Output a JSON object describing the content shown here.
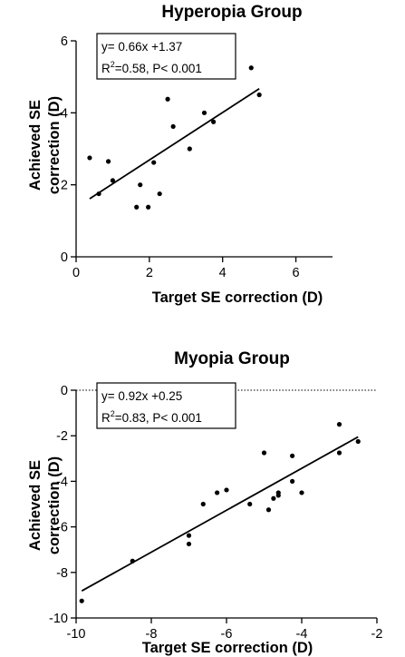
{
  "chart_data": [
    {
      "type": "scatter",
      "title": "Hyperopia Group",
      "xlabel": "Target SE correction (D)",
      "ylabel": [
        "Achieved SE",
        "correction (D)"
      ],
      "xlim": [
        0,
        7
      ],
      "ylim": [
        0,
        6
      ],
      "xticks": [
        "0",
        "2",
        "4",
        "6"
      ],
      "yticks": [
        "0",
        "2",
        "4",
        "6"
      ],
      "points": [
        {
          "x": 0.37,
          "y": 2.75
        },
        {
          "x": 0.62,
          "y": 1.75
        },
        {
          "x": 0.88,
          "y": 2.65
        },
        {
          "x": 1.0,
          "y": 2.12
        },
        {
          "x": 1.65,
          "y": 1.38
        },
        {
          "x": 1.75,
          "y": 2.0
        },
        {
          "x": 1.97,
          "y": 1.38
        },
        {
          "x": 2.12,
          "y": 2.62
        },
        {
          "x": 2.28,
          "y": 1.75
        },
        {
          "x": 2.5,
          "y": 4.38
        },
        {
          "x": 2.65,
          "y": 3.62
        },
        {
          "x": 3.1,
          "y": 3.0
        },
        {
          "x": 3.5,
          "y": 4.0
        },
        {
          "x": 3.75,
          "y": 3.75
        },
        {
          "x": 4.78,
          "y": 5.25
        },
        {
          "x": 5.0,
          "y": 4.5
        }
      ],
      "fit_line": {
        "slope": 0.66,
        "intercept": 1.37,
        "x_range": [
          0.37,
          5.0
        ]
      },
      "annotation": {
        "line1": "y= 0.66x +1.37",
        "r_label": "R",
        "r_sup": "2",
        "line2_rest": "=0.58, P< 0.001"
      },
      "grid": false
    },
    {
      "type": "scatter",
      "title": "Myopia Group",
      "xlabel": "Target SE correction (D)",
      "ylabel": [
        "Achieved SE",
        "correction (D)"
      ],
      "xlim": [
        -10,
        -2
      ],
      "ylim": [
        -10,
        0
      ],
      "xticks": [
        "-10",
        "-8",
        "-6",
        "-4",
        "-2"
      ],
      "yticks": [
        "-10",
        "-8",
        "-6",
        "-4",
        "-2",
        "0"
      ],
      "points": [
        {
          "x": -9.85,
          "y": -9.25
        },
        {
          "x": -8.5,
          "y": -7.5
        },
        {
          "x": -7.0,
          "y": -6.38
        },
        {
          "x": -7.0,
          "y": -6.75
        },
        {
          "x": -6.62,
          "y": -5.0
        },
        {
          "x": -6.25,
          "y": -4.5
        },
        {
          "x": -6.0,
          "y": -4.38
        },
        {
          "x": -5.38,
          "y": -5.0
        },
        {
          "x": -5.0,
          "y": -2.75
        },
        {
          "x": -4.88,
          "y": -5.25
        },
        {
          "x": -4.75,
          "y": -4.75
        },
        {
          "x": -4.62,
          "y": -4.5
        },
        {
          "x": -4.62,
          "y": -4.62
        },
        {
          "x": -4.25,
          "y": -4.0
        },
        {
          "x": -4.25,
          "y": -2.88
        },
        {
          "x": -4.0,
          "y": -4.5
        },
        {
          "x": -3.0,
          "y": -1.5
        },
        {
          "x": -3.0,
          "y": -2.75
        },
        {
          "x": -2.5,
          "y": -2.25
        }
      ],
      "fit_line": {
        "slope": 0.92,
        "intercept": 0.25,
        "x_range": [
          -9.85,
          -2.5
        ]
      },
      "reference_line": {
        "y": 0,
        "style": "dotted"
      },
      "annotation": {
        "line1": "y= 0.92x +0.25",
        "r_label": "R",
        "r_sup": "2",
        "line2_rest": "=0.83, P< 0.001"
      },
      "grid": false
    }
  ]
}
